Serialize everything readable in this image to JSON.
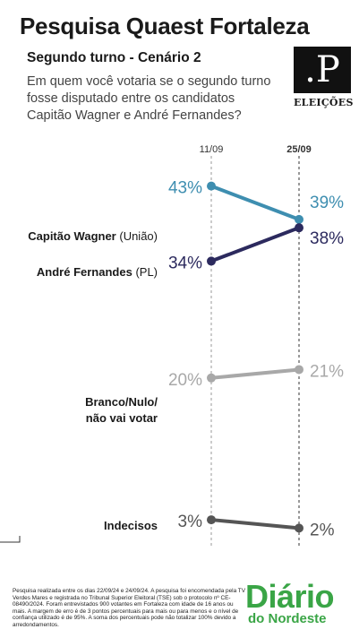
{
  "header": {
    "title": "Pesquisa Quaest Fortaleza",
    "subtitle": "Segundo turno - Cenário 2",
    "question": "Em quem você votaria se o segundo turno fosse disputado entre os candidatos Capitão Wagner e André Fernandes?"
  },
  "logo": {
    "letter": ".P",
    "label": "ELEIÇÕES"
  },
  "chart_data": {
    "type": "line",
    "x": [
      "11/09",
      "25/09"
    ],
    "ylim": [
      0,
      45
    ],
    "series": [
      {
        "name": "Capitão Wagner",
        "party": "(União)",
        "values": [
          43,
          39
        ],
        "labels": [
          "43%",
          "39%"
        ],
        "color": "#3e8eb0"
      },
      {
        "name": "André Fernandes",
        "party": "(PL)",
        "values": [
          34,
          38
        ],
        "labels": [
          "34%",
          "38%"
        ],
        "color": "#2c2a5e"
      },
      {
        "name": "Branco/Nulo/ não vai votar",
        "party": "",
        "values": [
          20,
          21
        ],
        "labels": [
          "20%",
          "21%"
        ],
        "color": "#a8a8a8"
      },
      {
        "name": "Indecisos",
        "party": "",
        "values": [
          3,
          2
        ],
        "labels": [
          "3%",
          "2%"
        ],
        "color": "#555555"
      }
    ]
  },
  "footnote": "Pesquisa realizada entre os dias 22/09/24 e 24/09/24. A pesquisa foi encomendada pela TV Verdes Mares e registrada no Tribunal Superior Eleitoral (TSE) sob o protocolo nº CE-08490/2024. Foram entrevistados 900 votantes em Fortaleza com idade de 16 anos ou mais. A margem de erro é de 3 pontos percentuais para mais ou para menos e o nível de confiança utilizado é de 95%. A soma dos percentuais pode não totalizar 100% devido a arredondamentos.",
  "brand": {
    "main": "Diário",
    "sub": "do Nordeste",
    "color": "#3aa546"
  }
}
